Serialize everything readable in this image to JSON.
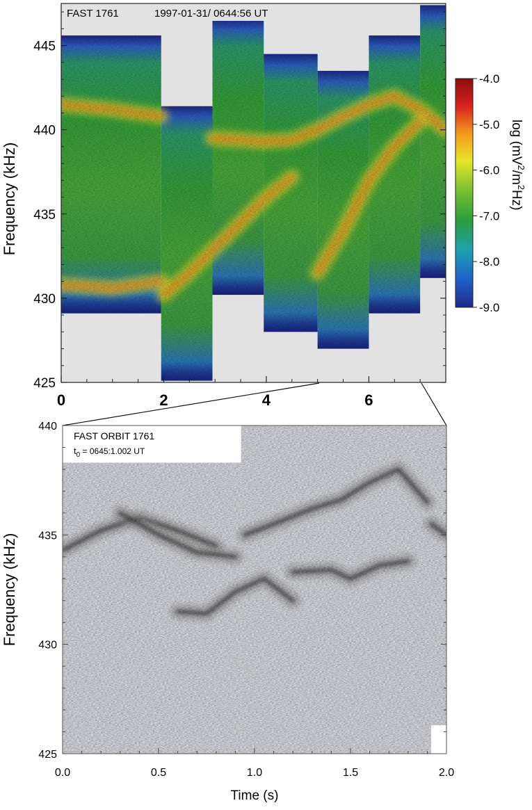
{
  "chart_data": [
    {
      "type": "heatmap",
      "panel": "top",
      "title_label": "FAST 1761",
      "timestamp": "1997-01-31/ 0644:56 UT",
      "ylabel": "Frequency (kHz)",
      "xlabel": "",
      "xlim": [
        0,
        7.5
      ],
      "ylim": [
        425,
        447.5
      ],
      "x_ticks": [
        "0",
        "2",
        "4",
        "6"
      ],
      "x_tick_values": [
        0,
        2,
        4,
        6
      ],
      "y_ticks": [
        "425",
        "430",
        "435",
        "440",
        "445"
      ],
      "y_tick_values": [
        425,
        430,
        435,
        440,
        445
      ],
      "colorbar": {
        "label_parts": [
          "log (mV",
          "2",
          "/m",
          "2",
          "Hz)"
        ],
        "ticks": [
          "-4.0",
          "-5.0",
          "-6.0",
          "-7.0",
          "-8.0",
          "-9.0"
        ],
        "tick_values": [
          -4,
          -5,
          -6,
          -7,
          -8,
          -9
        ],
        "range": [
          -9,
          -4
        ],
        "colors": [
          "#1d2a8a",
          "#1f5fc9",
          "#1fa0b0",
          "#2a9e3a",
          "#7ec32f",
          "#e6e62a",
          "#f29a1c",
          "#d8221e",
          "#8a0d0d"
        ]
      },
      "segments": [
        {
          "t0": 0.0,
          "t1": 1.95,
          "f_low": 429.1,
          "f_high": 445.6
        },
        {
          "t0": 1.95,
          "t1": 2.95,
          "f_low": 425.1,
          "f_high": 441.4
        },
        {
          "t0": 2.95,
          "t1": 3.95,
          "f_low": 430.2,
          "f_high": 446.6
        },
        {
          "t0": 3.95,
          "t1": 5.0,
          "f_low": 428.0,
          "f_high": 444.5
        },
        {
          "t0": 5.0,
          "t1": 6.0,
          "f_low": 427.0,
          "f_high": 443.5
        },
        {
          "t0": 6.0,
          "t1": 7.0,
          "f_low": 429.1,
          "f_high": 445.6
        },
        {
          "t0": 7.0,
          "t1": 7.6,
          "f_low": 431.2,
          "f_high": 447.4
        }
      ],
      "emission_tracks": [
        {
          "t": [
            0.0,
            1.0,
            1.95
          ],
          "f": [
            441.5,
            441.2,
            440.8
          ]
        },
        {
          "t": [
            0.0,
            1.0,
            1.95
          ],
          "f": [
            430.8,
            430.6,
            431.0
          ]
        },
        {
          "t": [
            2.0,
            2.5,
            3.0,
            3.5,
            4.0,
            4.5
          ],
          "f": [
            430.2,
            431.5,
            433.0,
            434.5,
            436.0,
            437.2
          ]
        },
        {
          "t": [
            2.95,
            3.5,
            3.95,
            4.5,
            5.0,
            5.5,
            6.0,
            6.5,
            7.0,
            7.5
          ],
          "f": [
            439.5,
            439.4,
            439.3,
            439.4,
            440.0,
            440.8,
            441.5,
            442.0,
            441.2,
            440.0
          ]
        },
        {
          "t": [
            5.0,
            5.5,
            6.0,
            6.5,
            7.0
          ],
          "f": [
            431.5,
            434.0,
            437.0,
            439.0,
            440.5
          ]
        }
      ]
    },
    {
      "type": "heatmap",
      "panel": "bottom",
      "title_label": "FAST  ORBIT 1761",
      "t0_label": "t",
      "t0_sub": "0",
      "t0_value": " = 0645:1.002 UT",
      "xlabel": "Time  (s)",
      "ylabel": "Frequency (kHz)",
      "xlim": [
        0.0,
        2.0
      ],
      "ylim": [
        425,
        440
      ],
      "x_ticks": [
        "0.0",
        "0.5",
        "1.0",
        "1.5",
        "2.0"
      ],
      "x_tick_values": [
        0.0,
        0.5,
        1.0,
        1.5,
        2.0
      ],
      "y_ticks": [
        "425",
        "430",
        "435",
        "440"
      ],
      "y_tick_values": [
        425,
        430,
        435,
        440
      ],
      "segments": [
        {
          "t0": 0.0,
          "t1": 0.93,
          "f_low": 425.0,
          "f_high": 438.3
        },
        {
          "t0": 0.93,
          "t1": 1.92,
          "f_low": 425.0,
          "f_high": 440.0
        },
        {
          "t0": 1.92,
          "t1": 2.0,
          "f_low": 426.3,
          "f_high": 440.0
        }
      ],
      "emission_tracks": [
        {
          "t": [
            0.0,
            0.2,
            0.4,
            0.6,
            0.8
          ],
          "f": [
            434.3,
            435.2,
            435.8,
            435.2,
            434.5
          ]
        },
        {
          "t": [
            0.3,
            0.5,
            0.7,
            0.9
          ],
          "f": [
            436.0,
            435.0,
            434.2,
            434.0
          ]
        },
        {
          "t": [
            0.6,
            0.75,
            0.9,
            1.05,
            1.2
          ],
          "f": [
            431.5,
            431.4,
            432.4,
            433.0,
            432.0
          ]
        },
        {
          "t": [
            0.95,
            1.1,
            1.3,
            1.45,
            1.6,
            1.75,
            1.9
          ],
          "f": [
            435.0,
            435.5,
            436.2,
            436.6,
            437.4,
            438.0,
            436.5
          ]
        },
        {
          "t": [
            1.2,
            1.4,
            1.5,
            1.65,
            1.8
          ],
          "f": [
            433.3,
            433.4,
            433.0,
            433.6,
            433.8
          ]
        },
        {
          "t": [
            1.92,
            2.0
          ],
          "f": [
            435.5,
            435.0
          ]
        }
      ]
    }
  ]
}
